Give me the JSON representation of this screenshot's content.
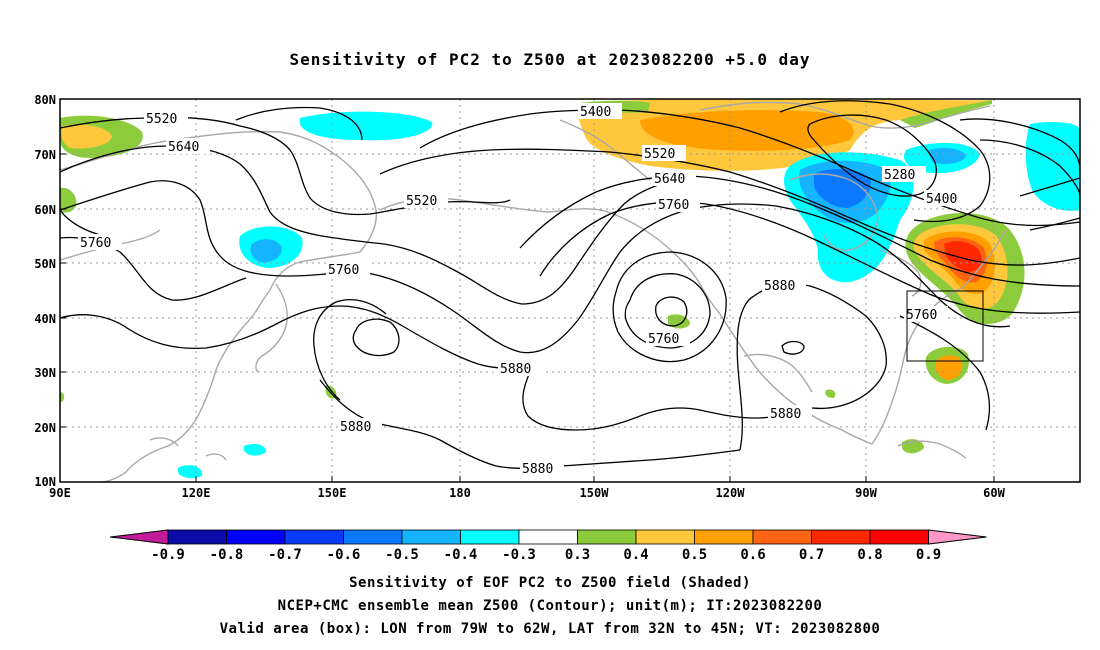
{
  "title": "Sensitivity of PC2 to Z500 at 2023082200 +5.0 day",
  "map": {
    "lat_labels": [
      "80N",
      "70N",
      "60N",
      "50N",
      "40N",
      "30N",
      "20N",
      "10N"
    ],
    "lon_labels": [
      "90E",
      "120E",
      "150E",
      "180",
      "150W",
      "120W",
      "90W",
      "60W"
    ],
    "contour_labels": [
      "5520",
      "5640",
      "5760",
      "5520",
      "5760",
      "5400",
      "5520",
      "5640",
      "5760",
      "5760",
      "5880",
      "5880",
      "5880",
      "5880",
      "5280",
      "5400",
      "5760",
      "5880"
    ],
    "valid_box": {
      "lon_min": "79W",
      "lon_max": "62W",
      "lat_min": "32N",
      "lat_max": "45N"
    }
  },
  "colorbar": {
    "ticks": [
      "-0.9",
      "-0.8",
      "-0.7",
      "-0.6",
      "-0.5",
      "-0.4",
      "-0.3",
      "0.3",
      "0.4",
      "0.5",
      "0.6",
      "0.7",
      "0.8",
      "0.9"
    ],
    "colors": [
      "#c41a9c",
      "#0a0aa8",
      "#0000ff",
      "#0a3cff",
      "#0a78ff",
      "#14b4ff",
      "#00ffff",
      "#ffffff",
      "#8ccc3c",
      "#ffc83c",
      "#ffa000",
      "#ff6414",
      "#ff2800",
      "#ff0000",
      "#ff96c8"
    ]
  },
  "captions": {
    "line1": "Sensitivity of EOF PC2 to Z500 field (Shaded)",
    "line2": "NCEP+CMC ensemble mean Z500 (Contour); unit(m); IT:2023082200",
    "line3": "Valid area (box): LON from 79W to 62W, LAT from 32N to 45N; VT: 2023082800"
  }
}
